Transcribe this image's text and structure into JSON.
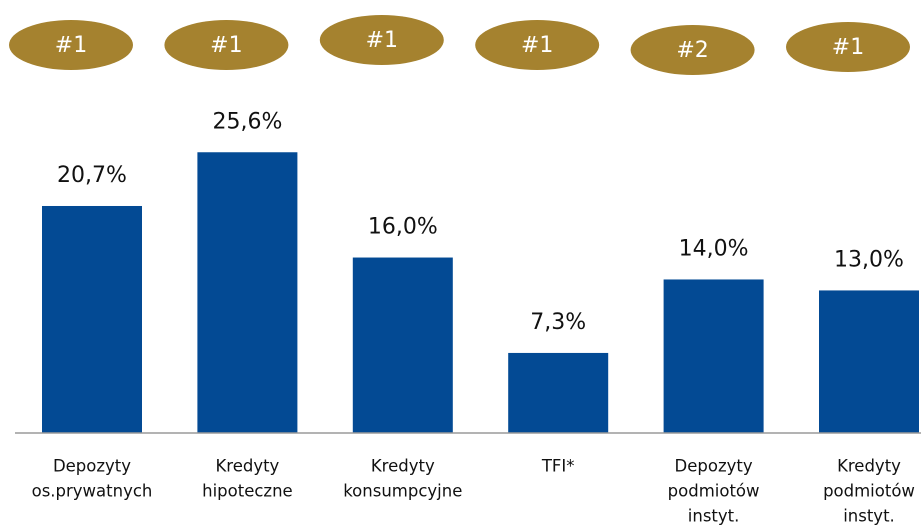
{
  "chart_data": {
    "type": "bar",
    "categories": [
      [
        "Depozyty",
        "os.prywatnych"
      ],
      [
        "Kredyty",
        "hipoteczne"
      ],
      [
        "Kredyty",
        "konsumpcyjne"
      ],
      [
        "TFI*"
      ],
      [
        "Depozyty",
        "podmiotów",
        "instyt."
      ],
      [
        "Kredyty",
        "podmiotów",
        "instyt."
      ]
    ],
    "values": [
      20.7,
      25.6,
      16.0,
      7.3,
      14.0,
      13.0
    ],
    "value_labels": [
      "20,7%",
      "25,6%",
      "16,0%",
      "7,3%",
      "14,0%",
      "13,0%"
    ],
    "ranks": [
      "#1",
      "#1",
      "#1",
      "#1",
      "#2",
      "#1"
    ],
    "color": "#034a94",
    "rank_color": "#a5822f",
    "ylim": [
      0,
      30
    ]
  }
}
